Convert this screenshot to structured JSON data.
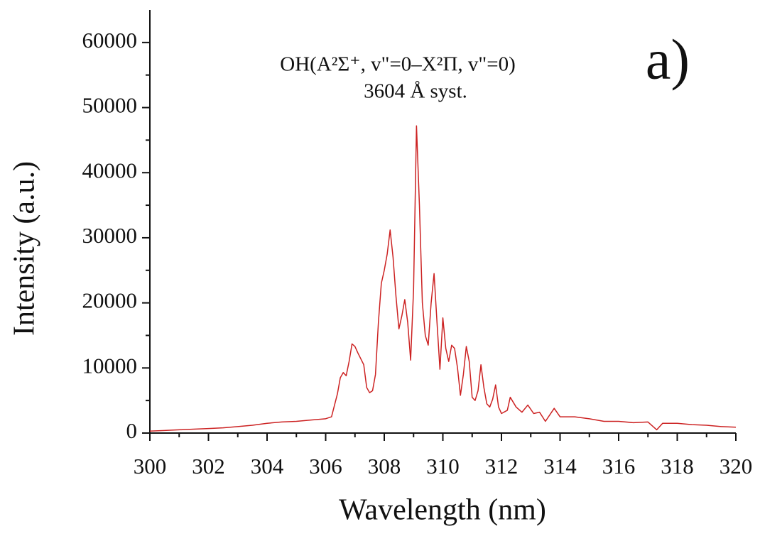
{
  "chart_data": {
    "type": "line",
    "annotations": [
      "OH(A²Σ⁺, v\"=0–X²Π, v\"=0)",
      "3604 Å syst.",
      "a)"
    ],
    "x_label": "Wavelength (nm)",
    "y_label": "Intensity (a.u.)",
    "color": "#cc2222",
    "x": [
      300,
      300.5,
      301,
      301.5,
      302,
      302.5,
      303,
      303.5,
      304,
      304.5,
      305,
      305.5,
      306,
      306.2,
      306.4,
      306.5,
      306.6,
      306.7,
      306.8,
      306.9,
      307.0,
      307.1,
      307.2,
      307.3,
      307.4,
      307.5,
      307.6,
      307.7,
      307.8,
      307.9,
      308.0,
      308.1,
      308.2,
      308.3,
      308.4,
      308.5,
      308.6,
      308.7,
      308.8,
      308.9,
      309.0,
      309.1,
      309.2,
      309.3,
      309.4,
      309.5,
      309.6,
      309.7,
      309.8,
      309.9,
      310.0,
      310.1,
      310.2,
      310.3,
      310.4,
      310.5,
      310.6,
      310.7,
      310.8,
      310.9,
      311.0,
      311.1,
      311.2,
      311.3,
      311.4,
      311.5,
      311.6,
      311.7,
      311.8,
      311.9,
      312.0,
      312.2,
      312.3,
      312.5,
      312.7,
      312.9,
      313.1,
      313.3,
      313.5,
      313.8,
      314,
      314.5,
      315,
      315.5,
      316,
      316.5,
      317,
      317.3,
      317.5,
      318,
      318.5,
      319,
      319.5,
      320
    ],
    "values": [
      300,
      400,
      500,
      600,
      700,
      800,
      1000,
      1200,
      1500,
      1700,
      1800,
      2000,
      2200,
      2500,
      6000,
      8500,
      9300,
      8800,
      11000,
      13700,
      13300,
      12300,
      11400,
      10500,
      7000,
      6200,
      6500,
      9000,
      17000,
      23000,
      25000,
      27500,
      31200,
      27000,
      21000,
      16000,
      18000,
      20500,
      17000,
      11200,
      22000,
      47200,
      35000,
      20000,
      15000,
      13500,
      20000,
      24500,
      17000,
      9800,
      17700,
      13000,
      11000,
      13500,
      13000,
      10000,
      5800,
      9000,
      13300,
      11000,
      5500,
      5000,
      6500,
      10500,
      7000,
      4500,
      4000,
      5200,
      7400,
      4000,
      3000,
      3500,
      5500,
      4000,
      3200,
      4300,
      3000,
      3200,
      1800,
      3800,
      2500,
      2500,
      2200,
      1800,
      1800,
      1600,
      1700,
      500,
      1500,
      1500,
      1300,
      1200,
      1000,
      900
    ],
    "xlim": [
      300,
      320
    ],
    "ylim": [
      0,
      65000
    ],
    "xticks": [
      300,
      302,
      304,
      306,
      308,
      310,
      312,
      314,
      316,
      318,
      320
    ],
    "yticks": [
      0,
      10000,
      20000,
      30000,
      40000,
      50000,
      60000
    ]
  }
}
